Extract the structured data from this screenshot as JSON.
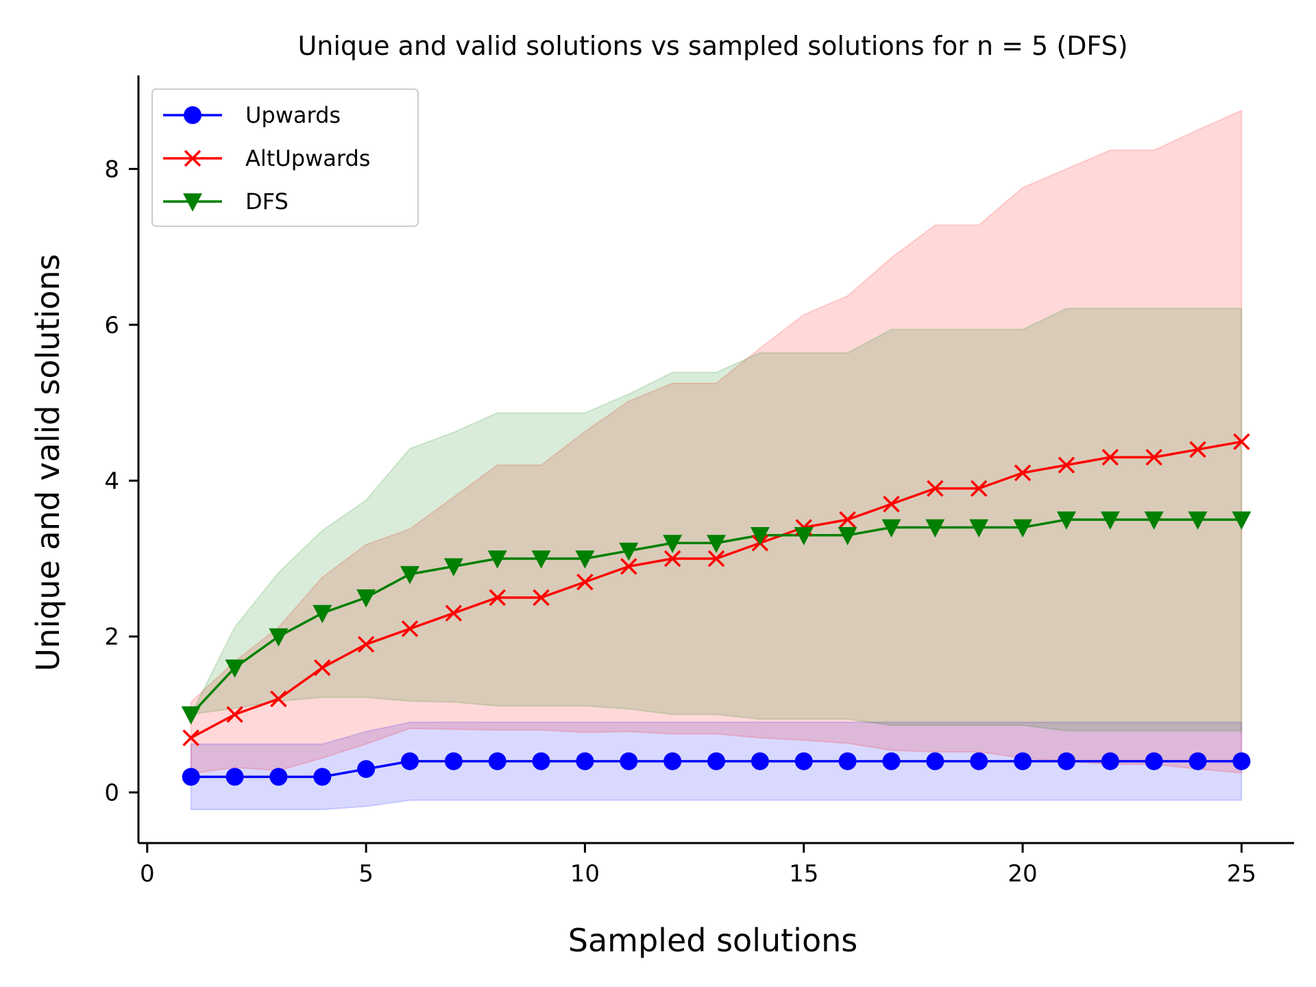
{
  "chart_data": {
    "type": "line",
    "title": "Unique and valid solutions vs sampled solutions for n = 5 (DFS)",
    "xlabel": "Sampled solutions",
    "ylabel": "Unique and valid solutions",
    "xlim": [
      -0.2,
      26.2
    ],
    "ylim": [
      -0.65,
      9.2
    ],
    "xticks": [
      0,
      5,
      10,
      15,
      20,
      25
    ],
    "yticks": [
      0,
      2,
      4,
      6,
      8
    ],
    "grid": false,
    "legend_position": "top-left",
    "x": [
      1,
      2,
      3,
      4,
      5,
      6,
      7,
      8,
      9,
      10,
      11,
      12,
      13,
      14,
      15,
      16,
      17,
      18,
      19,
      20,
      21,
      22,
      23,
      24,
      25
    ],
    "series": [
      {
        "name": "Upwards",
        "color": "#0000ff",
        "marker": "circle",
        "values": [
          0.2,
          0.2,
          0.2,
          0.2,
          0.3,
          0.4,
          0.4,
          0.4,
          0.4,
          0.4,
          0.4,
          0.4,
          0.4,
          0.4,
          0.4,
          0.4,
          0.4,
          0.4,
          0.4,
          0.4,
          0.4,
          0.4,
          0.4,
          0.4,
          0.4
        ],
        "band_lower": [
          -0.22,
          -0.22,
          -0.22,
          -0.22,
          -0.18,
          -0.1,
          -0.1,
          -0.1,
          -0.1,
          -0.1,
          -0.1,
          -0.1,
          -0.1,
          -0.1,
          -0.1,
          -0.1,
          -0.1,
          -0.1,
          -0.1,
          -0.1,
          -0.1,
          -0.1,
          -0.1,
          -0.1,
          -0.1
        ],
        "band_upper": [
          0.62,
          0.62,
          0.62,
          0.62,
          0.78,
          0.9,
          0.9,
          0.9,
          0.9,
          0.9,
          0.9,
          0.9,
          0.9,
          0.9,
          0.9,
          0.9,
          0.9,
          0.9,
          0.9,
          0.9,
          0.9,
          0.9,
          0.9,
          0.9,
          0.9
        ]
      },
      {
        "name": "AltUpwards",
        "color": "#ff0000",
        "marker": "x",
        "values": [
          0.7,
          1.0,
          1.2,
          1.6,
          1.9,
          2.1,
          2.3,
          2.5,
          2.5,
          2.7,
          2.9,
          3.0,
          3.0,
          3.2,
          3.4,
          3.5,
          3.7,
          3.9,
          3.9,
          4.1,
          4.2,
          4.3,
          4.3,
          4.4,
          4.5
        ],
        "band_lower": [
          0.24,
          0.32,
          0.28,
          0.44,
          0.62,
          0.82,
          0.81,
          0.8,
          0.8,
          0.77,
          0.78,
          0.75,
          0.75,
          0.7,
          0.67,
          0.63,
          0.54,
          0.52,
          0.52,
          0.44,
          0.4,
          0.36,
          0.36,
          0.3,
          0.25
        ],
        "band_upper": [
          1.16,
          1.68,
          2.12,
          2.76,
          3.18,
          3.38,
          3.79,
          4.2,
          4.2,
          4.63,
          5.02,
          5.25,
          5.25,
          5.7,
          6.13,
          6.37,
          6.86,
          7.28,
          7.28,
          7.76,
          8.0,
          8.24,
          8.24,
          8.5,
          8.75
        ]
      },
      {
        "name": "DFS",
        "color": "#008000",
        "marker": "triangle-down",
        "values": [
          1.0,
          1.6,
          2.0,
          2.3,
          2.5,
          2.8,
          2.9,
          3.0,
          3.0,
          3.0,
          3.1,
          3.2,
          3.2,
          3.3,
          3.3,
          3.3,
          3.4,
          3.4,
          3.4,
          3.4,
          3.5,
          3.5,
          3.5,
          3.5,
          3.5
        ],
        "band_lower": [
          1.0,
          1.08,
          1.17,
          1.22,
          1.22,
          1.17,
          1.16,
          1.11,
          1.11,
          1.11,
          1.07,
          1.0,
          1.0,
          0.94,
          0.94,
          0.94,
          0.86,
          0.86,
          0.86,
          0.86,
          0.79,
          0.79,
          0.79,
          0.79,
          0.79
        ],
        "band_upper": [
          1.0,
          2.12,
          2.82,
          3.36,
          3.75,
          4.41,
          4.62,
          4.87,
          4.87,
          4.87,
          5.11,
          5.39,
          5.39,
          5.64,
          5.64,
          5.64,
          5.94,
          5.94,
          5.94,
          5.94,
          6.21,
          6.21,
          6.21,
          6.21,
          6.21
        ]
      }
    ]
  }
}
